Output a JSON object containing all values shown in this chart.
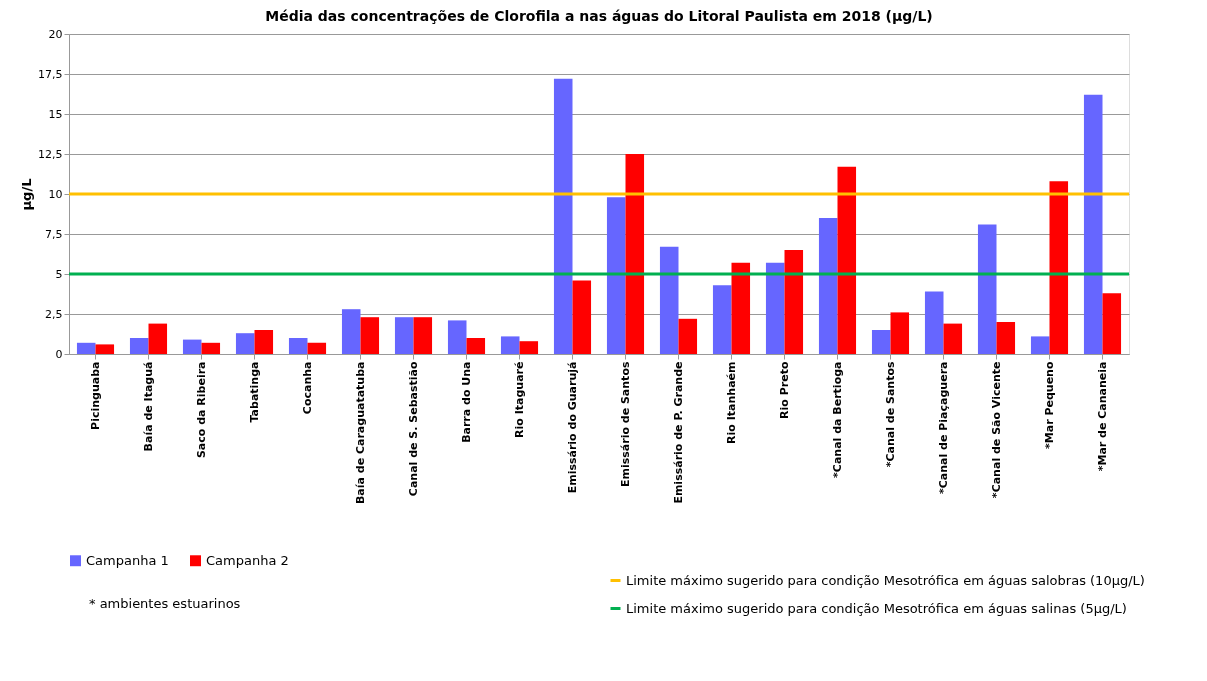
{
  "chart_data": {
    "type": "bar",
    "title": "Média das concentrações de Clorofila a nas águas do Litoral Paulista em 2018 (µg/L)",
    "ylabel": "µg/L",
    "categories": [
      "Picinguaba",
      "Baía de Itaguá",
      "Saco da Ribeira",
      "Tabatinga",
      "Cocanha",
      "Baía de Caraguatatuba",
      "Canal de S. Sebastião",
      "Barra do Una",
      "Rio Itaguaré",
      "Emissário do Guarujá",
      "Emissário de Santos",
      "Emissário de P. Grande",
      "Rio Itanhaém",
      "Rio Preto",
      "*Canal da Bertioga",
      "*Canal de Santos",
      "*Canal de Piaçaguera",
      "*Canal de São Vicente",
      "*Mar Pequeno",
      "*Mar de Cananeia"
    ],
    "series": [
      {
        "name": "Campanha 1",
        "color": "#6666ff",
        "values": [
          0.7,
          1.0,
          0.9,
          1.3,
          1.0,
          2.8,
          2.3,
          2.1,
          1.1,
          17.2,
          9.8,
          6.7,
          4.3,
          5.7,
          8.5,
          1.5,
          3.9,
          8.1,
          1.1,
          16.2
        ]
      },
      {
        "name": "Campanha 2",
        "color": "#ff0000",
        "values": [
          0.6,
          1.9,
          0.7,
          1.5,
          0.7,
          2.3,
          2.3,
          1.0,
          0.8,
          4.6,
          12.5,
          2.2,
          5.7,
          6.5,
          11.7,
          2.6,
          1.9,
          2.0,
          10.8,
          3.8
        ]
      }
    ],
    "ylim": [
      0,
      20
    ],
    "yticks": [
      0,
      {
        "value": 2.5,
        "label": "2,5"
      },
      5,
      {
        "value": 7.5,
        "label": "7,5"
      },
      10,
      {
        "value": 12.5,
        "label": "12,5"
      },
      15,
      {
        "value": 17.5,
        "label": "17,5"
      },
      20
    ],
    "grid": "y",
    "legend": "bottom",
    "ref_lines": [
      {
        "axis": "y",
        "value": 10,
        "label": "Limite máximo sugerido para condição Mesotrófica em águas salobras (10µg/L)",
        "color": "#ffc000"
      },
      {
        "axis": "y",
        "value": 5,
        "label": "Limite máximo sugerido para condição Mesotrófica em águas salinas (5µg/L)",
        "color": "#00b050"
      }
    ],
    "annotations": [
      "* ambientes estuarinos"
    ]
  }
}
